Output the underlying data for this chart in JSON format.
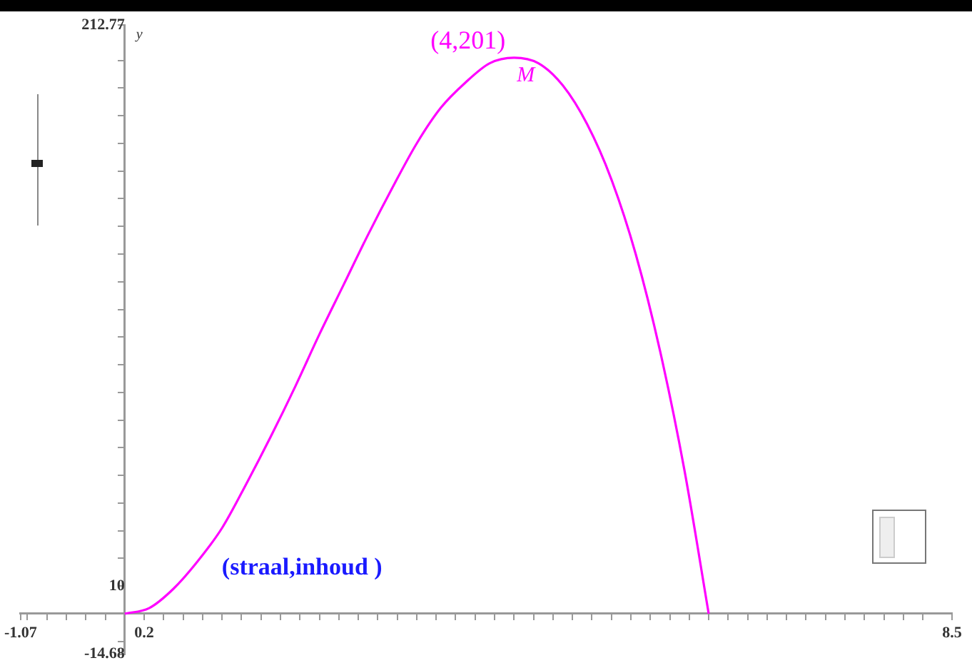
{
  "chart_data": {
    "type": "line",
    "ylabel": "y",
    "x": [
      0,
      0.25,
      0.5,
      0.75,
      1,
      1.25,
      1.5,
      1.75,
      2,
      2.25,
      2.5,
      2.75,
      3,
      3.25,
      3.5,
      3.75,
      4,
      4.25,
      4.5,
      4.75,
      5,
      5.25,
      5.5,
      5.75,
      6
    ],
    "series": [
      {
        "color": "#ff00ff",
        "values": [
          0,
          2,
          9,
          19,
          31,
          47,
          64,
          82,
          101,
          119,
          137,
          154,
          170,
          183,
          192,
          199,
          201,
          199,
          191,
          177,
          157,
          130,
          95,
          52,
          0
        ]
      }
    ],
    "xlim": [
      -1.07,
      8.5
    ],
    "xticks": [
      {
        "value": -1.07,
        "label": "-1.07"
      },
      {
        "value": -1,
        "label": null
      },
      {
        "value": -0.8,
        "label": null
      },
      {
        "value": -0.6,
        "label": null
      },
      {
        "value": -0.4,
        "label": null
      },
      {
        "value": -0.2,
        "label": null
      },
      {
        "value": 0.2,
        "label": "0.2"
      },
      {
        "value": 0.4,
        "label": null
      },
      {
        "value": 0.6,
        "label": null
      },
      {
        "value": 0.8,
        "label": null
      },
      {
        "value": 1,
        "label": null
      },
      {
        "value": 1.2,
        "label": null
      },
      {
        "value": 1.4,
        "label": null
      },
      {
        "value": 1.6,
        "label": null
      },
      {
        "value": 1.8,
        "label": null
      },
      {
        "value": 2,
        "label": null
      },
      {
        "value": 2.2,
        "label": null
      },
      {
        "value": 2.4,
        "label": null
      },
      {
        "value": 2.6,
        "label": null
      },
      {
        "value": 2.8,
        "label": null
      },
      {
        "value": 3,
        "label": null
      },
      {
        "value": 3.2,
        "label": null
      },
      {
        "value": 3.4,
        "label": null
      },
      {
        "value": 3.6,
        "label": null
      },
      {
        "value": 3.8,
        "label": null
      },
      {
        "value": 4,
        "label": null
      },
      {
        "value": 4.2,
        "label": null
      },
      {
        "value": 4.4,
        "label": null
      },
      {
        "value": 4.6,
        "label": null
      },
      {
        "value": 4.8,
        "label": null
      },
      {
        "value": 5,
        "label": null
      },
      {
        "value": 5.2,
        "label": null
      },
      {
        "value": 5.4,
        "label": null
      },
      {
        "value": 5.6,
        "label": null
      },
      {
        "value": 5.8,
        "label": null
      },
      {
        "value": 6,
        "label": null
      },
      {
        "value": 6.2,
        "label": null
      },
      {
        "value": 6.4,
        "label": null
      },
      {
        "value": 6.6,
        "label": null
      },
      {
        "value": 6.8,
        "label": null
      },
      {
        "value": 7,
        "label": null
      },
      {
        "value": 7.2,
        "label": null
      },
      {
        "value": 7.4,
        "label": null
      },
      {
        "value": 7.6,
        "label": null
      },
      {
        "value": 7.8,
        "label": null
      },
      {
        "value": 8,
        "label": null
      },
      {
        "value": 8.2,
        "label": null
      },
      {
        "value": 8.5,
        "label": "8.5"
      }
    ],
    "ylim": [
      -14.68,
      212.77
    ],
    "yticks": [
      {
        "value": -14.68,
        "label": "-14.68"
      },
      {
        "value": -10,
        "label": null
      },
      {
        "value": 10,
        "label": "10"
      },
      {
        "value": 20,
        "label": null
      },
      {
        "value": 30,
        "label": null
      },
      {
        "value": 40,
        "label": null
      },
      {
        "value": 50,
        "label": null
      },
      {
        "value": 60,
        "label": null
      },
      {
        "value": 70,
        "label": null
      },
      {
        "value": 80,
        "label": null
      },
      {
        "value": 90,
        "label": null
      },
      {
        "value": 100,
        "label": null
      },
      {
        "value": 110,
        "label": null
      },
      {
        "value": 120,
        "label": null
      },
      {
        "value": 130,
        "label": null
      },
      {
        "value": 140,
        "label": null
      },
      {
        "value": 150,
        "label": null
      },
      {
        "value": 160,
        "label": null
      },
      {
        "value": 170,
        "label": null
      },
      {
        "value": 180,
        "label": null
      },
      {
        "value": 190,
        "label": null
      },
      {
        "value": 200,
        "label": null
      },
      {
        "value": 212.77,
        "label": "212.77"
      }
    ],
    "annotations": [
      {
        "text": "(4,201)",
        "x": 4,
        "y": 201
      },
      {
        "text": "M",
        "x": 4,
        "y": 201
      },
      "(straal,inhoud )"
    ],
    "grid": false,
    "legend": false,
    "marker": "none",
    "line_style": "solid"
  }
}
